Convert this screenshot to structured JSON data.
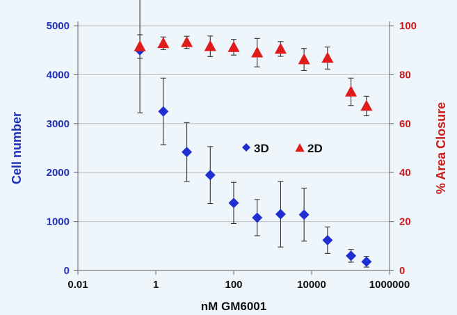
{
  "chart_data": {
    "type": "scatter",
    "title": "",
    "xlabel": "nM GM6001",
    "ylabel_left": "Cell number",
    "ylabel_right": "% Area Closure",
    "x_scale": "log",
    "xlim": [
      0.01,
      1000000
    ],
    "x_ticks": [
      0.01,
      1,
      100,
      10000,
      1000000
    ],
    "x_tick_labels": [
      "0.01",
      "1",
      "100",
      "10000",
      "1000000"
    ],
    "ylim_left": [
      0,
      5000
    ],
    "y_ticks_left": [
      0,
      1000,
      2000,
      3000,
      4000,
      5000
    ],
    "y_tick_labels_left": [
      "0",
      "1000",
      "2000",
      "3000",
      "4000",
      "5000"
    ],
    "ylim_right": [
      0,
      100
    ],
    "y_ticks_right": [
      0,
      20,
      40,
      60,
      80,
      100
    ],
    "y_tick_labels_right": [
      "0",
      "20",
      "40",
      "60",
      "80",
      "100"
    ],
    "grid": "horizontal",
    "legend_position": "center-right",
    "colors": {
      "series_3d": "#1f2fd0",
      "series_2d": "#e01b1b",
      "left_axis": "#1f2fb5",
      "right_axis": "#cc1a1a",
      "background": "#eef5fb"
    },
    "series": [
      {
        "name": "3D",
        "axis": "left",
        "marker": "diamond",
        "x": [
          0.39,
          1.56,
          6.25,
          25,
          100,
          400,
          1600,
          6400,
          25600,
          102400,
          256000
        ],
        "y": [
          4500,
          3250,
          2420,
          1950,
          1380,
          1080,
          1150,
          1140,
          620,
          300,
          180
        ],
        "error": [
          1280,
          680,
          600,
          580,
          420,
          370,
          670,
          540,
          270,
          130,
          110
        ]
      },
      {
        "name": "2D",
        "axis": "right",
        "marker": "triangle",
        "x": [
          0.39,
          1.56,
          6.25,
          25,
          100,
          400,
          1600,
          6400,
          25600,
          102400,
          256000
        ],
        "y": [
          91.5,
          92.8,
          93.2,
          91.6,
          91.2,
          89.0,
          90.5,
          86.2,
          86.8,
          73.0,
          67.2
        ],
        "error": [
          4.8,
          2.6,
          2.5,
          4.2,
          3.2,
          5.8,
          3.0,
          4.5,
          4.5,
          5.6,
          4.0
        ]
      }
    ]
  }
}
